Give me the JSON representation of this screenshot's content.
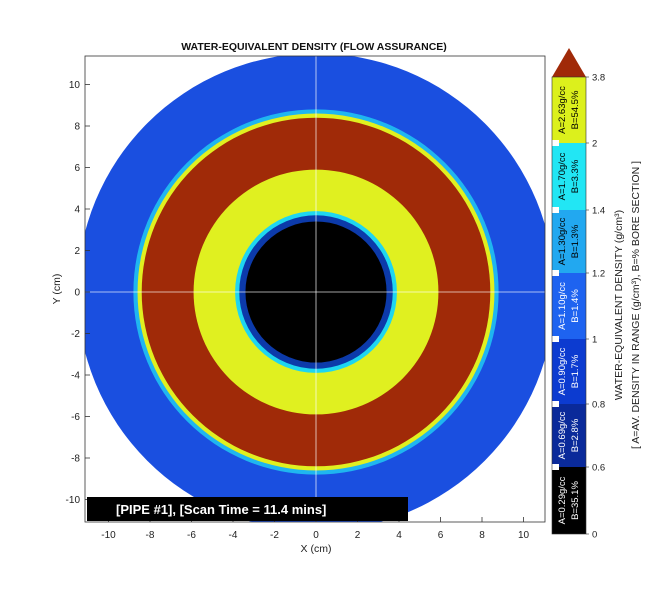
{
  "chart_data": {
    "type": "heatmap",
    "title": "WATER-EQUIVALENT DENSITY (FLOW ASSURANCE)",
    "xlabel": "X (cm)",
    "ylabel": "Y (cm)",
    "xlim": [
      -11,
      11.5
    ],
    "ylim": [
      -11,
      11.5
    ],
    "x_ticks": [
      -10,
      -8,
      -6,
      -4,
      -2,
      0,
      2,
      4,
      6,
      8,
      10
    ],
    "y_ticks": [
      -10,
      -8,
      -6,
      -4,
      -2,
      0,
      2,
      4,
      6,
      8,
      10
    ],
    "grid": "crosshair at x=0, y=0",
    "annotation": "[PIPE #1], [Scan Time = 11.4 mins]",
    "regions": [
      {
        "shape": "disk",
        "center": [
          0,
          0
        ],
        "radius": 11.5,
        "level": "background",
        "color": "#1a4fe0"
      },
      {
        "shape": "disk",
        "center": [
          0,
          0
        ],
        "radius": 8.8,
        "level": "halo",
        "color": "#1fb6f0"
      },
      {
        "shape": "disk",
        "center": [
          0,
          0
        ],
        "radius": 8.6,
        "level": "rim",
        "color": "#e0f020"
      },
      {
        "shape": "disk",
        "center": [
          0,
          0
        ],
        "radius": 8.4,
        "level": "pipe wall",
        "color": "#a02a08"
      },
      {
        "shape": "disk",
        "center": [
          0,
          0
        ],
        "radius": 5.9,
        "level": "deposit",
        "color": "#e0f020"
      },
      {
        "shape": "disk",
        "center": [
          0,
          0
        ],
        "radius": 3.9,
        "level": "transition",
        "color": "#1fd6f0"
      },
      {
        "shape": "disk",
        "center": [
          0,
          0
        ],
        "radius": 3.7,
        "level": "inner",
        "color": "#0c3aaa"
      },
      {
        "shape": "disk",
        "center": [
          0,
          0
        ],
        "radius": 3.4,
        "level": "bore",
        "color": "#000000"
      }
    ],
    "colorbar": {
      "label_line1": "WATER-EQUIVALENT DENSITY (g/cm³)",
      "label_line2": "[ A=AV. DENSITY IN RANGE (g/cm³), B=% BORE SECTION ]",
      "tick_labels": [
        "0",
        "0.6",
        "0.8",
        "1",
        "1.2",
        "1.4",
        "2",
        "3.8"
      ],
      "bands": [
        {
          "from": 0,
          "to": 0.6,
          "color": "#000000",
          "text_a": "A=0.29g/cc",
          "text_b": "B=35.1%"
        },
        {
          "from": 0.6,
          "to": 0.8,
          "color": "#0a2a9a",
          "text_a": "A=0.69g/cc",
          "text_b": "B=2.8%"
        },
        {
          "from": 0.8,
          "to": 1.0,
          "color": "#0c3bd0",
          "text_a": "A=0.90g/cc",
          "text_b": "B=1.7%"
        },
        {
          "from": 1.0,
          "to": 1.2,
          "color": "#1e63f0",
          "text_a": "A=1.10g/cc",
          "text_b": "B=1.4%"
        },
        {
          "from": 1.2,
          "to": 1.4,
          "color": "#22a8f0",
          "text_a": "A=1.30g/cc",
          "text_b": "B=1.3%"
        },
        {
          "from": 1.4,
          "to": 2.0,
          "color": "#22e6f4",
          "text_a": "A=1.70g/cc",
          "text_b": "B=3.3%"
        },
        {
          "from": 2.0,
          "to": 3.8,
          "color": "#dcf01c",
          "text_a": "A=2.63g/cc",
          "text_b": "B=54.5%"
        },
        {
          "from": 3.8,
          "to": null,
          "color": "#a02a08",
          "text_a": "",
          "text_b": ""
        }
      ]
    }
  }
}
